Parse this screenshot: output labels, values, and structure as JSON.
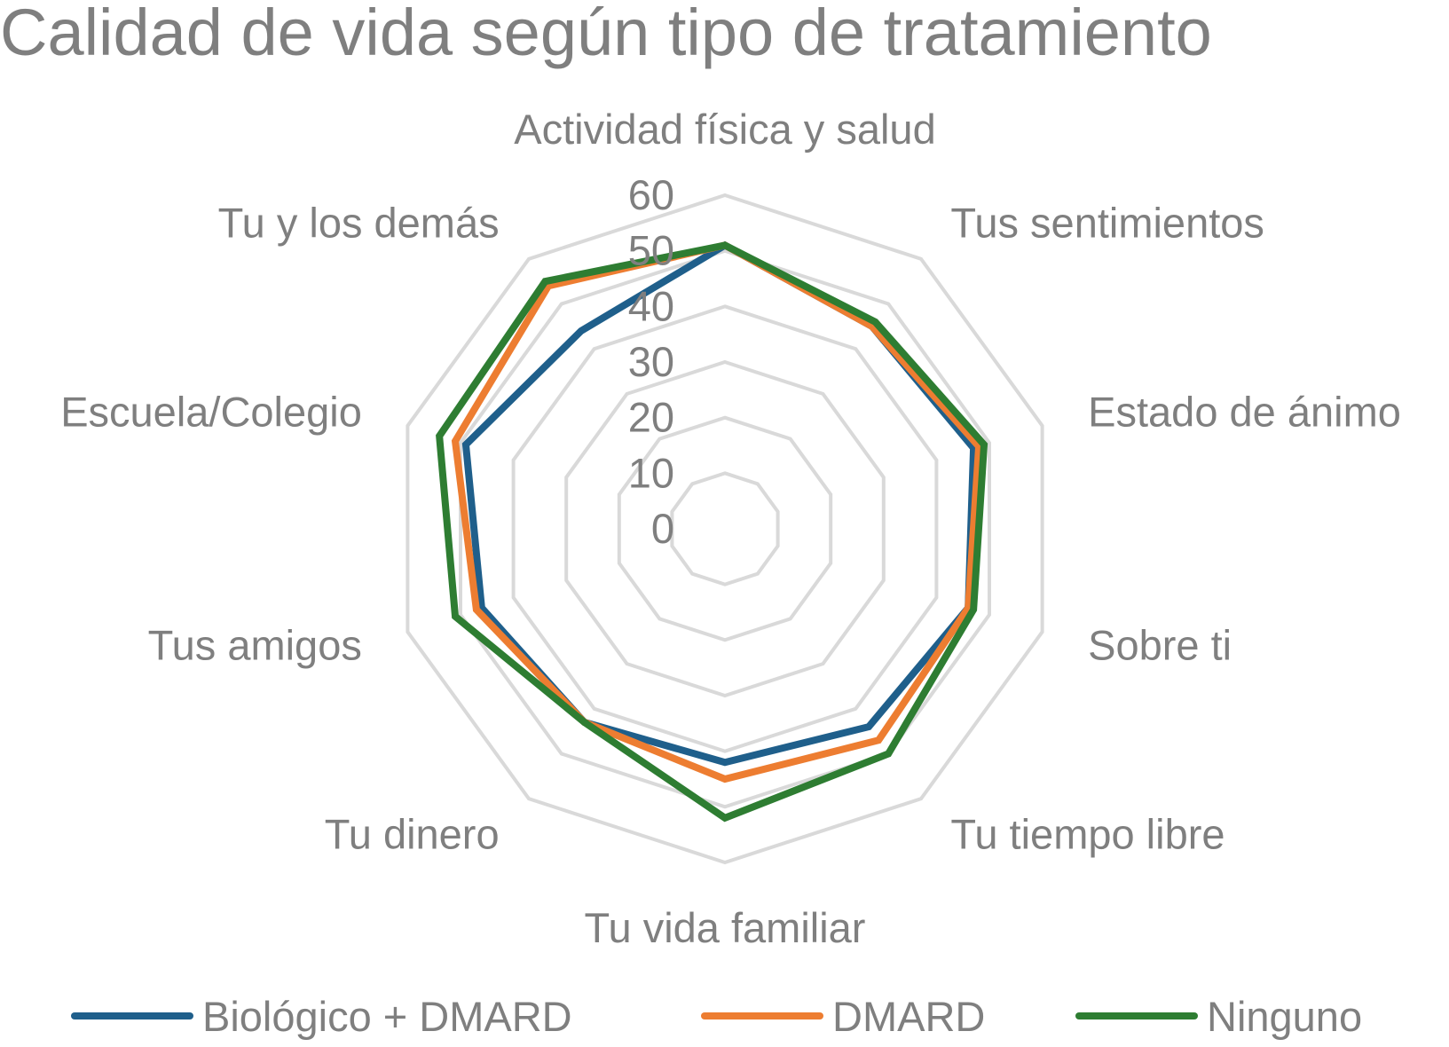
{
  "title": "Calidad de vida según tipo de tratamiento",
  "colors": {
    "grid": "#d9d9d9",
    "text": "#7f7f7f",
    "biologico": "#1f5f8b",
    "dmard": "#ed7d31",
    "ninguno": "#2e7d32"
  },
  "chart_data": {
    "type": "radar",
    "title": "Calidad de vida según tipo de tratamiento",
    "categories": [
      "Actividad física y salud",
      "Tus sentimientos",
      "Estado de ánimo",
      "Sobre ti",
      "Tu tiempo libre",
      "Tu vida familiar",
      "Tu dinero",
      "Tus amigos",
      "Escuela/Colegio",
      "Tu y los demás"
    ],
    "ticks": [
      "0",
      "10",
      "20",
      "30",
      "40",
      "50",
      "60"
    ],
    "range": [
      0,
      60
    ],
    "grid": true,
    "legend_position": "bottom",
    "series": [
      {
        "name": "Biológico + DMARD",
        "color": "#1f5f8b",
        "values": [
          51,
          45,
          47,
          46,
          44,
          42,
          43,
          46,
          49,
          44
        ]
      },
      {
        "name": "DMARD",
        "color": "#ed7d31",
        "values": [
          51,
          45,
          48,
          46,
          47,
          45,
          43,
          47,
          51,
          54
        ]
      },
      {
        "name": "Ninguno",
        "color": "#2e7d32",
        "values": [
          51,
          46,
          49,
          47,
          50,
          52,
          43,
          51,
          54,
          55
        ]
      }
    ]
  }
}
